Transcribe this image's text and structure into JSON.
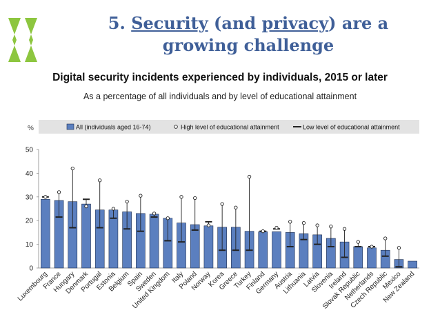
{
  "slide": {
    "title_number": "5. ",
    "title_word1": "Security",
    "title_mid": " (and ",
    "title_word2": "privacy",
    "title_end": ") are a",
    "title_line2": "growing challenge"
  },
  "colors": {
    "title": "#3f5f98",
    "bar": "#5b7fbf",
    "bar_stroke": "#1f2f4f",
    "legend_bg": "#e3e3e3",
    "logo_green": "#8dc63f"
  },
  "icons": {
    "logo": "oecd-logo-icon"
  },
  "chart_data": {
    "type": "bar",
    "title": "Digital security incidents experienced by individuals, 2015 or later",
    "subtitle": "As a percentage of all individuals and by level of educational attainment",
    "ylabel": "%",
    "ylim": [
      0,
      50
    ],
    "yticks": [
      0,
      10,
      20,
      30,
      40,
      50
    ],
    "grid": false,
    "legend_position": "top",
    "categories": [
      "Luxembourg",
      "France",
      "Hungary",
      "Denmark",
      "Portugal",
      "Estonia",
      "Belgium",
      "Spain",
      "Sweden",
      "United Kingdom",
      "Italy",
      "Poland",
      "Norway",
      "Korea",
      "Greece",
      "Turkey",
      "Finland",
      "Germany",
      "Austria",
      "Lithuania",
      "Latvia",
      "Slovenia",
      "Ireland",
      "Slovak Republic",
      "Netherlands",
      "Czech Republic",
      "Mexico",
      "New Zealand"
    ],
    "series": [
      {
        "name": "All (individuals aged 16-74)",
        "kind": "bar",
        "values": [
          29,
          28.5,
          28,
          27,
          24.5,
          24.5,
          23.7,
          23,
          22.7,
          21,
          19,
          18.3,
          17.8,
          17.2,
          17.2,
          15.5,
          15.3,
          15.3,
          15,
          14.5,
          14,
          12.5,
          11,
          9,
          8.5,
          7.5,
          3.6,
          2.9
        ]
      },
      {
        "name": "High level of educational attainment",
        "kind": "marker",
        "values": [
          30,
          32,
          42,
          26,
          37,
          25,
          28,
          30.5,
          23,
          21,
          30,
          29.5,
          18,
          27,
          25.5,
          38.5,
          15.5,
          17,
          19.5,
          19,
          18,
          17.5,
          16.5,
          11,
          9,
          12.5,
          8.5,
          null
        ]
      },
      {
        "name": "Low level of educational attainment",
        "kind": "dash",
        "values": [
          30,
          21.5,
          17,
          29,
          17,
          21,
          16.5,
          15.5,
          21.5,
          11.5,
          11,
          16,
          19.5,
          7.5,
          7.5,
          7.5,
          15.5,
          16.5,
          9,
          12,
          10,
          9,
          4.5,
          9,
          9,
          5,
          0.5,
          null
        ]
      }
    ]
  }
}
